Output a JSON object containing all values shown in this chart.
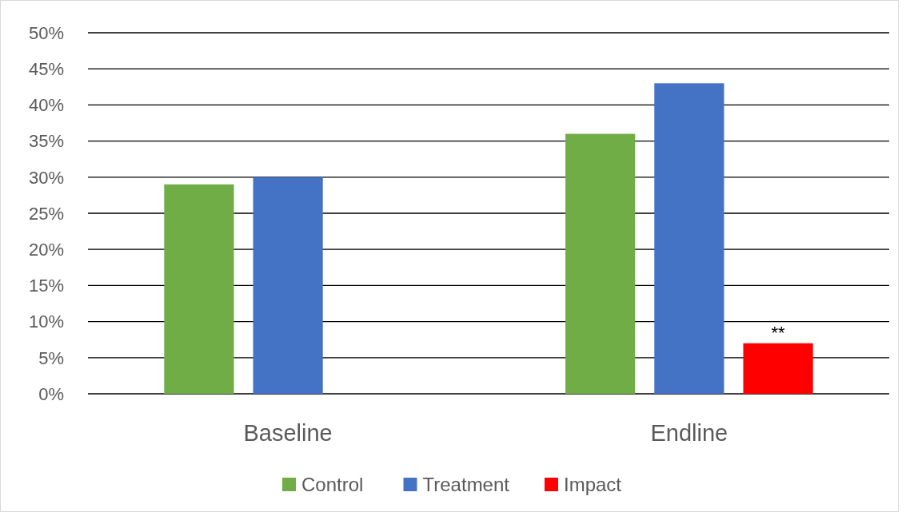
{
  "chart_data": {
    "type": "bar",
    "categories": [
      "Baseline",
      "Endline"
    ],
    "series": [
      {
        "name": "Control",
        "color": "#70ad47",
        "values": [
          29,
          36
        ]
      },
      {
        "name": "Treatment",
        "color": "#4472c4",
        "values": [
          30,
          43
        ]
      },
      {
        "name": "Impact",
        "color": "#ff0000",
        "values": [
          null,
          7
        ]
      }
    ],
    "ylim": [
      0,
      50
    ],
    "yticks": [
      {
        "value": 0,
        "label": "0%"
      },
      {
        "value": 5,
        "label": "5%"
      },
      {
        "value": 10,
        "label": "10%"
      },
      {
        "value": 15,
        "label": "15%"
      },
      {
        "value": 20,
        "label": "20%"
      },
      {
        "value": 25,
        "label": "25%"
      },
      {
        "value": 30,
        "label": "30%"
      },
      {
        "value": 35,
        "label": "35%"
      },
      {
        "value": 40,
        "label": "40%"
      },
      {
        "value": 45,
        "label": "45%"
      },
      {
        "value": 50,
        "label": "50%"
      }
    ],
    "grid": "y",
    "legend": "bottom",
    "annotations": [
      "**"
    ]
  }
}
